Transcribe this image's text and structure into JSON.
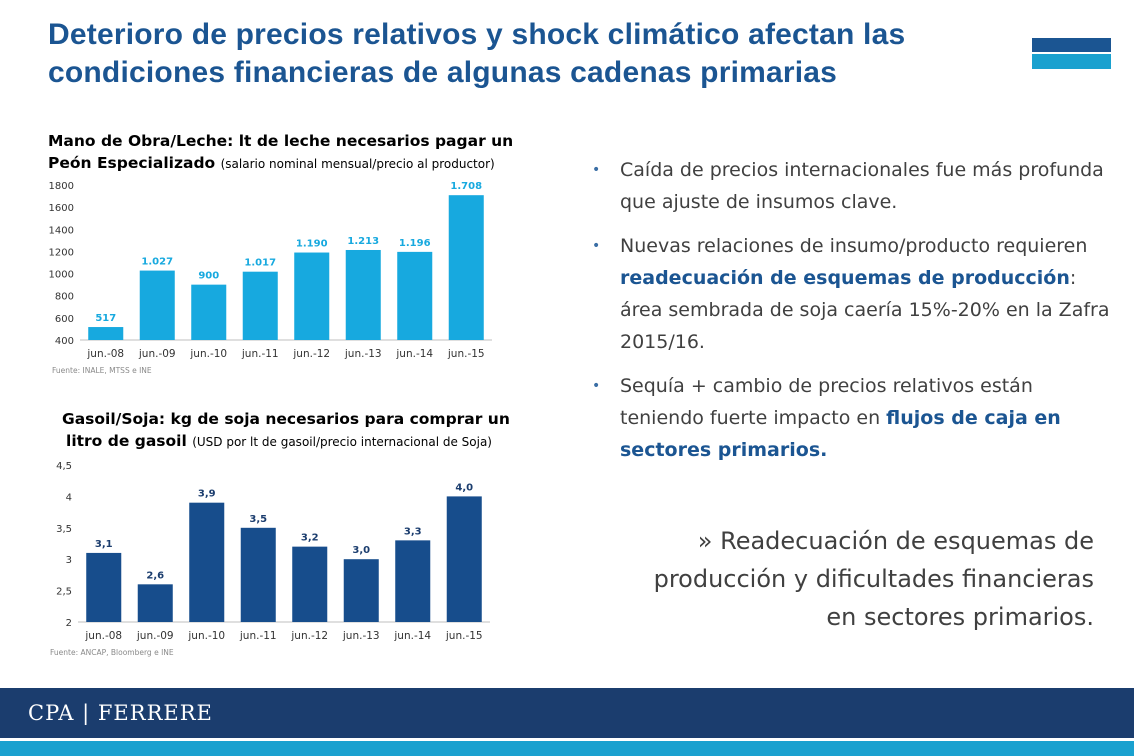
{
  "title": "Deterioro de precios relativos y shock climático afectan las condiciones financieras de algunas cadenas primarias",
  "chart1": {
    "title_bold_line1": "Mano de Obra/Leche: lt de leche necesarios pagar un",
    "title_bold_line2": "Peón Especializado",
    "title_sub": "(salario nominal mensual/precio al productor)",
    "source": "Fuente: INALE, MTSS e INE"
  },
  "chart2": {
    "title_bold_line1": "Gasoil/Soja: kg de soja necesarios para comprar un",
    "title_bold_line2": "litro de gasoil",
    "title_sub": "(USD por lt de gasoil/precio internacional de Soja)",
    "source": "Fuente: ANCAP, Bloomberg e INE"
  },
  "chart_data": [
    {
      "type": "bar",
      "title": "Mano de Obra/Leche: lt de leche necesarios pagar un Peón Especializado (salario nominal mensual/precio al productor)",
      "categories": [
        "jun.-08",
        "jun.-09",
        "jun.-10",
        "jun.-11",
        "jun.-12",
        "jun.-13",
        "jun.-14",
        "jun.-15"
      ],
      "values": [
        517,
        1027,
        900,
        1017,
        1190,
        1213,
        1196,
        1708
      ],
      "labels": [
        "517",
        "1.027",
        "900",
        "1.017",
        "1.190",
        "1.213",
        "1.196",
        "1.708"
      ],
      "yticks": [
        "400",
        "600",
        "800",
        "1000",
        "1200",
        "1400",
        "1600",
        "1800"
      ],
      "ylim": [
        400,
        1800
      ],
      "color": "#17a9df",
      "label_color": "#17a9df",
      "grid": false
    },
    {
      "type": "bar",
      "title": "Gasoil/Soja: kg de soja necesarios para comprar un litro de gasoil (USD por lt de gasoil/precio internacional de Soja)",
      "categories": [
        "jun.-08",
        "jun.-09",
        "jun.-10",
        "jun.-11",
        "jun.-12",
        "jun.-13",
        "jun.-14",
        "jun.-15"
      ],
      "values": [
        3.1,
        2.6,
        3.9,
        3.5,
        3.2,
        3.0,
        3.3,
        4.0
      ],
      "labels": [
        "3,1",
        "2,6",
        "3,9",
        "3,5",
        "3,2",
        "3,0",
        "3,3",
        "4,0"
      ],
      "yticks": [
        "2",
        "2,5",
        "3",
        "3,5",
        "4",
        "4,5"
      ],
      "ylim": [
        2,
        4.5
      ],
      "color": "#174d8c",
      "label_color": "#1b3d6e",
      "grid": false
    }
  ],
  "bullets": {
    "b1": "Caída de precios internacionales fue más profunda que ajuste de insumos clave.",
    "b2_a": "Nuevas relaciones de insumo/producto requieren ",
    "b2_hl": "readecuación de esquemas de producción",
    "b2_b": ": área sembrada de soja caería 15%-20% en la Zafra 2015/16.",
    "b3_a": "Sequía + cambio de precios relativos están teniendo fuerte impacto en ",
    "b3_hl": "flujos de caja en sectores primarios."
  },
  "conclusion": "» Readecuación de esquemas de producción y dificultades financieras en sectores primarios.",
  "footer": {
    "logo": "CPA | FERRERE"
  },
  "colors": {
    "title": "#1b5592",
    "footer": "#1b3d6e",
    "accent": "#1aa1cf"
  }
}
